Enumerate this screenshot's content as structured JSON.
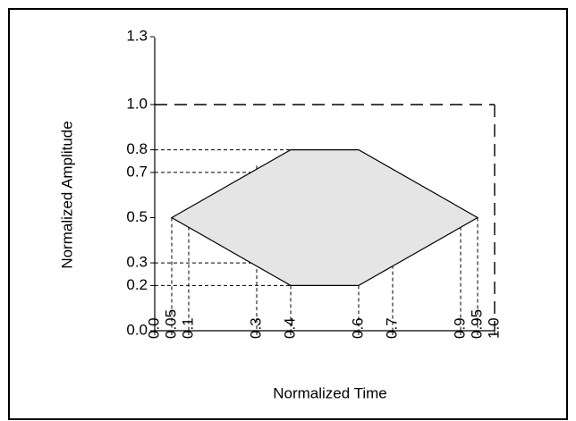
{
  "chart_data": {
    "type": "area",
    "title": "",
    "xlabel": "Normalized Time",
    "ylabel": "Normalized Amplitude",
    "xlim": [
      0,
      1.0
    ],
    "ylim": [
      0,
      1.3
    ],
    "y_tick_labels": [
      "0.0",
      "0.2",
      "0.3",
      "0.5",
      "0.7",
      "0.8",
      "1.0",
      "1.3"
    ],
    "x_tick_labels": [
      "0.0",
      "0.05",
      "0.1",
      "0.3",
      "0.4",
      "0.6",
      "0.7",
      "0.9",
      "0.95",
      "1.0"
    ],
    "series": [
      {
        "points": [
          {
            "x": 0.05,
            "y": 0.5
          },
          {
            "x": 0.4,
            "y": 0.8
          },
          {
            "x": 0.6,
            "y": 0.8
          },
          {
            "x": 0.95,
            "y": 0.5
          },
          {
            "x": 0.6,
            "y": 0.2
          },
          {
            "x": 0.4,
            "y": 0.2
          }
        ]
      }
    ],
    "bound_box": {
      "x": 1.0,
      "y": 1.0
    },
    "guide_segments": [
      {
        "from": [
          0,
          0.8
        ],
        "to": [
          0.4,
          0.8
        ]
      },
      {
        "from": [
          0,
          0.7
        ],
        "to": [
          0.3,
          0.7
        ]
      },
      {
        "from": [
          0,
          0.3
        ],
        "to": [
          0.3,
          0.3
        ]
      },
      {
        "from": [
          0,
          0.2
        ],
        "to": [
          0.4,
          0.2
        ]
      },
      {
        "from": [
          0.05,
          0.5
        ],
        "to": [
          0.05,
          0
        ]
      },
      {
        "from": [
          0.1,
          0.46
        ],
        "to": [
          0.1,
          0
        ]
      },
      {
        "from": [
          0.3,
          0.73
        ],
        "to": [
          0.3,
          0.6
        ]
      },
      {
        "from": [
          0.3,
          0.3
        ],
        "to": [
          0.3,
          0
        ]
      },
      {
        "from": [
          0.4,
          0.2
        ],
        "to": [
          0.4,
          0
        ]
      },
      {
        "from": [
          0.6,
          0.2
        ],
        "to": [
          0.6,
          0
        ]
      },
      {
        "from": [
          0.7,
          0.29
        ],
        "to": [
          0.7,
          0
        ]
      },
      {
        "from": [
          0.9,
          0.46
        ],
        "to": [
          0.9,
          0
        ]
      },
      {
        "from": [
          0.95,
          0.5
        ],
        "to": [
          0.95,
          0
        ]
      }
    ],
    "grid": false
  },
  "colors": {
    "fill": "#e5e5e6",
    "stroke": "#000000",
    "background": "#ffffff"
  }
}
